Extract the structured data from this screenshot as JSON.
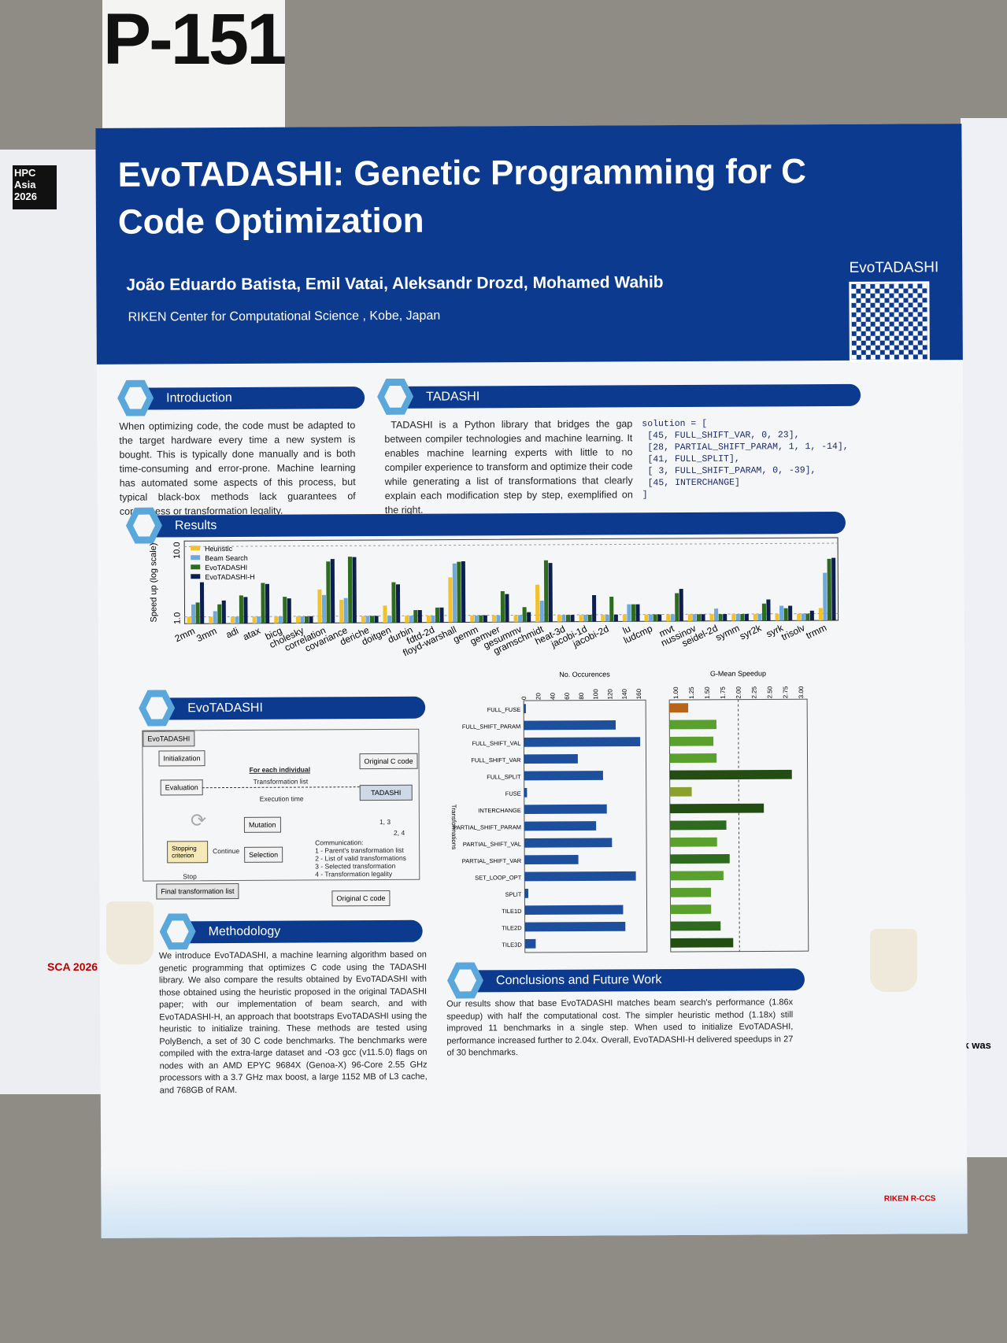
{
  "poster_number": "P-151",
  "left_poster": {
    "logo": "HPC Asia 2026",
    "footer_logo": "SCA 2026"
  },
  "right_poster": {
    "fragments": [
      "This work was"
    ]
  },
  "header": {
    "title": "EvoTADASHI: Genetic Programming for C Code Optimization",
    "authors": "João Eduardo Batista, Emil Vatai, Aleksandr Drozd, Mohamed Wahib",
    "affiliation": "RIKEN Center for Computational Science , Kobe, Japan",
    "qr_label": "EvoTADASHI"
  },
  "introduction": {
    "title": "Introduction",
    "text": "When optimizing code, the code must be adapted to the target hardware every time a new system is bought. This is typically done manually and is both time-consuming and error-prone. Machine learning has automated some aspects of this process, but typical black-box methods lack guarantees of correctness or transformation legality."
  },
  "tadashi": {
    "title": "TADASHI",
    "text": "TADASHI is a Python library that bridges the gap between compiler technologies and machine learning. It enables machine learning experts with little to no compiler experience to transform and optimize their code while generating a list of transformations that clearly explain each modification step by step, exemplified on the right.",
    "code": "solution = [\n [45, FULL_SHIFT_VAR, 0, 23],\n [28, PARTIAL_SHIFT_PARAM, 1, 1, -14],\n [41, FULL_SPLIT],\n [ 3, FULL_SHIFT_PARAM, 0, -39],\n [45, INTERCHANGE]\n]"
  },
  "results": {
    "title": "Results"
  },
  "evotadashi": {
    "title": "EvoTADASHI",
    "diagram": {
      "frame": "EvoTADASHI",
      "initialization": "Initialization",
      "evaluation": "Evaluation",
      "for_each": "For each individual",
      "transformation_list": "Transformation list",
      "execution_time": "Execution time",
      "original_c_code": "Original C code",
      "tadashi": "TADASHI",
      "mutation": "Mutation",
      "selection": "Selection",
      "stopping": "Stopping criterion",
      "continue": "Continue",
      "stop": "Stop",
      "final": "Final transformation list",
      "comm_13": "1, 3",
      "comm_24": "2, 4",
      "communication": "Communication:\n1 - Parent's transformation list\n2 - List of valid transformations\n3 - Selected transformation\n4 - Transformation legality",
      "original_c_code_bottom": "Original C code"
    }
  },
  "methodology": {
    "title": "Methodology",
    "text": "We introduce EvoTADASHI, a machine learning algorithm based on genetic programming that optimizes C code using the TADASHI library. We also compare the results obtained by EvoTADASHI with those obtained using the heuristic proposed in the original TADASHI paper; with our implementation of beam search, and with EvoTADASHI-H, an approach that bootstraps EvoTADASHI using the heuristic to initialize training. These methods are tested using PolyBench, a set of 30 C code benchmarks. The benchmarks were compiled with the extra-large dataset and -O3 gcc (v11.5.0) flags on nodes with an AMD EPYC 9684X (Genoa-X) 96-Core 2.55 GHz processors with a 3.7 GHz max boost, a large 1152 MB of L3 cache, and 768GB of RAM."
  },
  "conclusions": {
    "title": "Conclusions and Future Work",
    "text": "Our results show that base EvoTADASHI matches beam search's performance (1.86x speedup) with half the computational cost. The simpler heuristic method (1.18x) still improved 11 benchmarks in a single step. When used to initialize EvoTADASHI, performance increased further to 2.04x. Overall, EvoTADASHI-H delivered speedups in 27 of 30 benchmarks."
  },
  "footer": {
    "logos": [
      "RIKEN R-CCS"
    ]
  },
  "chart_data": [
    {
      "type": "bar",
      "ylabel": "Speed up (log scale)",
      "yscale": "log",
      "ylim": [
        0.8,
        12
      ],
      "yticks": [
        "1.0",
        "10.0"
      ],
      "legend": "top-left",
      "grid": true,
      "categories": [
        "2mm",
        "3mm",
        "adi",
        "atax",
        "bicg",
        "cholesky",
        "correlation",
        "covariance",
        "deriche",
        "doitgen",
        "durbin",
        "fdtd-2d",
        "floyd-warshall",
        "gemm",
        "gemver",
        "gesummv",
        "gramschmidt",
        "heat-3d",
        "jacobi-1d",
        "jacobi-2d",
        "lu",
        "ludcmp",
        "mvt",
        "nussinov",
        "seidel-2d",
        "symm",
        "syr2k",
        "syrk",
        "trisolv",
        "trmm"
      ],
      "series": [
        {
          "name": "Heuristic",
          "color": "#f2c12e",
          "values": [
            1.0,
            1.0,
            1.0,
            1.0,
            1.0,
            1.0,
            2.4,
            1.7,
            1.0,
            1.4,
            1.0,
            1.0,
            3.5,
            1.0,
            1.0,
            1.0,
            2.7,
            1.0,
            1.0,
            1.0,
            1.0,
            1.0,
            1.0,
            1.0,
            1.0,
            1.0,
            1.0,
            1.0,
            1.0,
            1.2
          ]
        },
        {
          "name": "Beam Search",
          "color": "#6fa8dc",
          "values": [
            1.5,
            1.2,
            1.0,
            1.0,
            1.0,
            1.0,
            2.0,
            1.8,
            1.0,
            1.0,
            1.0,
            1.0,
            5.5,
            1.0,
            1.0,
            1.0,
            1.6,
            1.0,
            1.0,
            1.0,
            1.4,
            1.0,
            1.0,
            1.0,
            1.2,
            1.0,
            1.0,
            1.3,
            1.0,
            3.8
          ]
        },
        {
          "name": "EvoTADASHI",
          "color": "#2e6b1f",
          "values": [
            1.6,
            1.5,
            2.0,
            3.0,
            1.9,
            1.0,
            6.0,
            7.0,
            1.0,
            3.0,
            1.2,
            1.3,
            5.8,
            1.0,
            2.2,
            1.3,
            6.0,
            1.0,
            1.0,
            1.8,
            1.4,
            1.0,
            2.0,
            1.0,
            1.0,
            1.0,
            1.4,
            1.2,
            1.0,
            6.0
          ]
        },
        {
          "name": "EvoTADASHI-H",
          "color": "#0d1f4e",
          "values": [
            3.1,
            1.7,
            1.9,
            2.9,
            1.8,
            1.0,
            6.5,
            6.9,
            1.0,
            2.8,
            1.2,
            1.3,
            5.9,
            1.0,
            2.0,
            1.1,
            5.5,
            1.0,
            1.9,
            1.0,
            1.4,
            1.0,
            2.3,
            1.0,
            1.0,
            1.0,
            1.6,
            1.3,
            1.1,
            6.2
          ]
        }
      ]
    },
    {
      "type": "bar",
      "orientation": "horizontal",
      "title": "No. Occurences",
      "ylabel": "Transformations",
      "xlim": [
        0,
        170
      ],
      "xticks": [
        0,
        20,
        40,
        60,
        80,
        100,
        120,
        140,
        160
      ],
      "color": "#1d4f9c",
      "categories": [
        "FULL_FUSE",
        "FULL_SHIFT_PARAM",
        "FULL_SHIFT_VAL",
        "FULL_SHIFT_VAR",
        "FULL_SPLIT",
        "FUSE",
        "INTERCHANGE",
        "PARTIAL_SHIFT_PARAM",
        "PARTIAL_SHIFT_VAL",
        "PARTIAL_SHIFT_VAR",
        "SET_LOOP_OPT",
        "SPLIT",
        "TILE1D",
        "TILE2D",
        "TILE3D"
      ],
      "values": [
        3,
        128,
        162,
        75,
        110,
        4,
        115,
        100,
        122,
        75,
        155,
        5,
        137,
        140,
        15
      ]
    },
    {
      "type": "bar",
      "orientation": "horizontal",
      "title": "G-Mean Speedup",
      "xlim": [
        0.9,
        3.1
      ],
      "xticks": [
        "1.00",
        "1.25",
        "1.50",
        "1.75",
        "2.00",
        "2.25",
        "2.50",
        "2.75",
        "3.00"
      ],
      "reference_line": 2.0,
      "categories": [
        "FULL_FUSE",
        "FULL_SHIFT_PARAM",
        "FULL_SHIFT_VAL",
        "FULL_SHIFT_VAR",
        "FULL_SPLIT",
        "FUSE",
        "INTERCHANGE",
        "PARTIAL_SHIFT_PARAM",
        "PARTIAL_SHIFT_VAL",
        "PARTIAL_SHIFT_VAR",
        "SET_LOOP_OPT",
        "SPLIT",
        "TILE1D",
        "TILE2D",
        "TILE3D"
      ],
      "values": [
        1.2,
        1.65,
        1.6,
        1.65,
        2.85,
        1.25,
        2.4,
        1.8,
        1.65,
        1.85,
        1.75,
        1.55,
        1.55,
        1.7,
        1.9
      ],
      "colors": [
        "#b8651b",
        "#5aa02c",
        "#5aa02c",
        "#5aa02c",
        "#234d12",
        "#8aa22c",
        "#234d12",
        "#2e6b1f",
        "#5aa02c",
        "#2e6b1f",
        "#5aa02c",
        "#5aa02c",
        "#5aa02c",
        "#2e6b1f",
        "#234d12"
      ]
    }
  ]
}
